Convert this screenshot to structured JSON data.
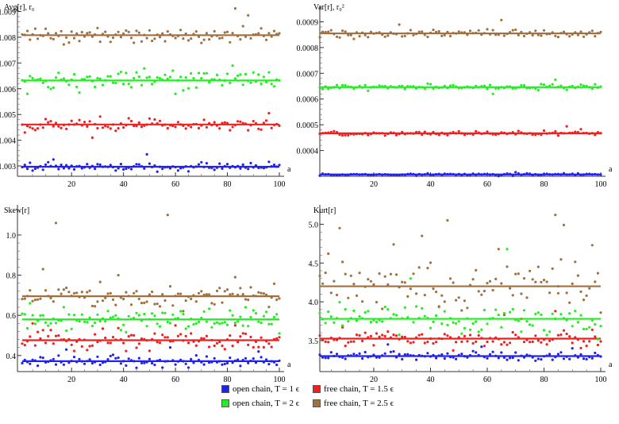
{
  "chart_data": [
    {
      "type": "scatter",
      "ylabel": "Avg[r], r₀",
      "xlabel": "a",
      "xlim": [
        1,
        100
      ],
      "ylim": [
        1.0026,
        1.0092
      ],
      "xticks": [
        20,
        40,
        60,
        80,
        100
      ],
      "xtick_labels": [
        "20",
        "40",
        "60",
        "80",
        "100"
      ],
      "yticks": [
        1.003,
        1.004,
        1.005,
        1.006,
        1.007,
        1.008,
        1.009
      ],
      "ytick_labels": [
        "1.003",
        "1.004",
        "1.005",
        "1.006",
        "1.007",
        "1.008",
        "1.009"
      ],
      "series": [
        {
          "name": "open chain, T = 1 ϵ",
          "color": "#2222ee",
          "mean": 1.00297,
          "spread": 0.00011,
          "outliers": [
            [
              49,
              1.00345
            ],
            [
              13,
              1.00325
            ],
            [
              75,
              1.00285
            ]
          ]
        },
        {
          "name": "free chain, T = 1.5 ϵ",
          "color": "#ee2020",
          "mean": 1.00461,
          "spread": 0.00017,
          "outliers": [
            [
              28,
              1.0041
            ],
            [
              2,
              1.0043
            ],
            [
              96,
              1.00505
            ]
          ]
        },
        {
          "name": "open chain, T = 2 ϵ",
          "color": "#22ee22",
          "mean": 1.00632,
          "spread": 0.00026,
          "outliers": [
            [
              3,
              1.0058
            ],
            [
              82,
              1.0069
            ],
            [
              60,
              1.0058
            ]
          ]
        },
        {
          "name": "free chain, T = 2.5 ϵ",
          "color": "#a07040",
          "mean": 1.00808,
          "spread": 0.00022,
          "outliers": [
            [
              83,
              1.00912
            ],
            [
              88,
              1.00885
            ],
            [
              17,
              1.00772
            ]
          ]
        }
      ]
    },
    {
      "type": "scatter",
      "ylabel": "Var[r], r₀²",
      "xlabel": "a",
      "xlim": [
        1,
        100
      ],
      "ylim": [
        0.0003,
        0.00096
      ],
      "xticks": [
        20,
        40,
        60,
        80,
        100
      ],
      "xtick_labels": [
        "20",
        "40",
        "60",
        "80",
        "100"
      ],
      "yticks": [
        0.0004,
        0.0005,
        0.0006,
        0.0007,
        0.0008,
        0.0009
      ],
      "ytick_labels": [
        "0.0004",
        "0.0005",
        "0.0006",
        "0.0007",
        "0.0008",
        "0.0009"
      ],
      "series": [
        {
          "name": "open chain, T = 1 ϵ",
          "color": "#2222ee",
          "mean": 0.000307,
          "spread": 3e-06,
          "outliers": [
            [
              70,
              0.000316
            ]
          ]
        },
        {
          "name": "free chain, T = 1.5 ϵ",
          "color": "#ee2020",
          "mean": 0.000467,
          "spread": 6e-06,
          "outliers": [
            [
              88,
              0.000494
            ],
            [
              93,
              0.000483
            ]
          ]
        },
        {
          "name": "open chain, T = 2 ϵ",
          "color": "#22ee22",
          "mean": 0.000646,
          "spread": 8e-06,
          "outliers": [
            [
              84,
              0.000675
            ],
            [
              62,
              0.00062
            ]
          ]
        },
        {
          "name": "free chain, T = 2.5 ϵ",
          "color": "#a07040",
          "mean": 0.000855,
          "spread": 1.2e-05,
          "outliers": [
            [
              65,
              0.000907
            ],
            [
              29,
              0.000889
            ]
          ]
        }
      ]
    },
    {
      "type": "scatter",
      "ylabel": "Skew[r]",
      "xlabel": "a",
      "xlim": [
        1,
        100
      ],
      "ylim": [
        0.32,
        1.15
      ],
      "xticks": [
        20,
        40,
        60,
        80,
        100
      ],
      "xtick_labels": [
        "20",
        "40",
        "60",
        "80",
        "100"
      ],
      "yticks": [
        0.4,
        0.6,
        0.8,
        1.0
      ],
      "ytick_labels": [
        "0.4",
        "0.6",
        "0.8",
        "1.0"
      ],
      "series": [
        {
          "name": "open chain, T = 1 ϵ",
          "color": "#2222ee",
          "mean": 0.372,
          "spread": 0.018,
          "outliers": [
            [
              18,
              0.43
            ],
            [
              58,
              0.44
            ],
            [
              92,
              0.42
            ]
          ]
        },
        {
          "name": "free chain, T = 1.5 ϵ",
          "color": "#ee2020",
          "mean": 0.476,
          "spread": 0.035,
          "outliers": [
            [
              5,
              0.56
            ],
            [
              60,
              0.55
            ],
            [
              83,
              0.55
            ]
          ]
        },
        {
          "name": "open chain, T = 2 ϵ",
          "color": "#22ee22",
          "mean": 0.58,
          "spread": 0.035,
          "outliers": [
            [
              4,
              0.66
            ],
            [
              87,
              0.64
            ],
            [
              100,
              0.51
            ]
          ]
        },
        {
          "name": "free chain, T = 2.5 ϵ",
          "color": "#a07040",
          "mean": 0.695,
          "spread": 0.045,
          "outliers": [
            [
              57,
              1.1
            ],
            [
              14,
              1.06
            ],
            [
              9,
              0.83
            ],
            [
              38,
              0.8
            ],
            [
              83,
              0.79
            ]
          ]
        }
      ]
    },
    {
      "type": "scatter",
      "ylabel": "Kurt[r]",
      "xlabel": "a",
      "xlim": [
        1,
        100
      ],
      "ylim": [
        3.1,
        5.25
      ],
      "xticks": [
        20,
        40,
        60,
        80,
        100
      ],
      "xtick_labels": [
        "20",
        "40",
        "60",
        "80",
        "100"
      ],
      "yticks": [
        3.5,
        4.0,
        4.5,
        5.0
      ],
      "ytick_labels": [
        "3.5",
        "4.0",
        "4.5",
        "5.0"
      ],
      "series": [
        {
          "name": "open chain, T = 1 ϵ",
          "color": "#2222ee",
          "mean": 3.3,
          "spread": 0.04,
          "outliers": [
            [
              25,
              3.45
            ],
            [
              58,
              3.42
            ],
            [
              90,
              3.4
            ]
          ]
        },
        {
          "name": "free chain, T = 1.5 ϵ",
          "color": "#ee2020",
          "mean": 3.525,
          "spread": 0.08,
          "outliers": [
            [
              84,
              3.88
            ],
            [
              72,
              3.78
            ]
          ]
        },
        {
          "name": "open chain, T = 2 ϵ",
          "color": "#22ee22",
          "mean": 3.78,
          "spread": 0.13,
          "outliers": [
            [
              67,
              4.68
            ],
            [
              33,
              4.3
            ],
            [
              85,
              4.2
            ]
          ]
        },
        {
          "name": "free chain, T = 2.5 ϵ",
          "color": "#a07040",
          "mean": 4.2,
          "spread": 0.2,
          "outliers": [
            [
              84,
              5.12
            ],
            [
              46,
              5.05
            ],
            [
              8,
              4.95
            ],
            [
              87,
              4.99
            ],
            [
              37,
              4.85
            ],
            [
              27,
              4.74
            ],
            [
              97,
              4.73
            ],
            [
              64,
              4.68
            ],
            [
              4,
              4.62
            ]
          ]
        }
      ]
    }
  ],
  "legend": {
    "entries": [
      {
        "label": "open chain, T = 1 ϵ",
        "color": "#2222ee"
      },
      {
        "label": "free chain, T = 1.5 ϵ",
        "color": "#ee2020"
      },
      {
        "label": "open chain, T = 2 ϵ",
        "color": "#22ee22"
      },
      {
        "label": "free chain, T = 2.5 ϵ",
        "color": "#a07040"
      }
    ]
  }
}
